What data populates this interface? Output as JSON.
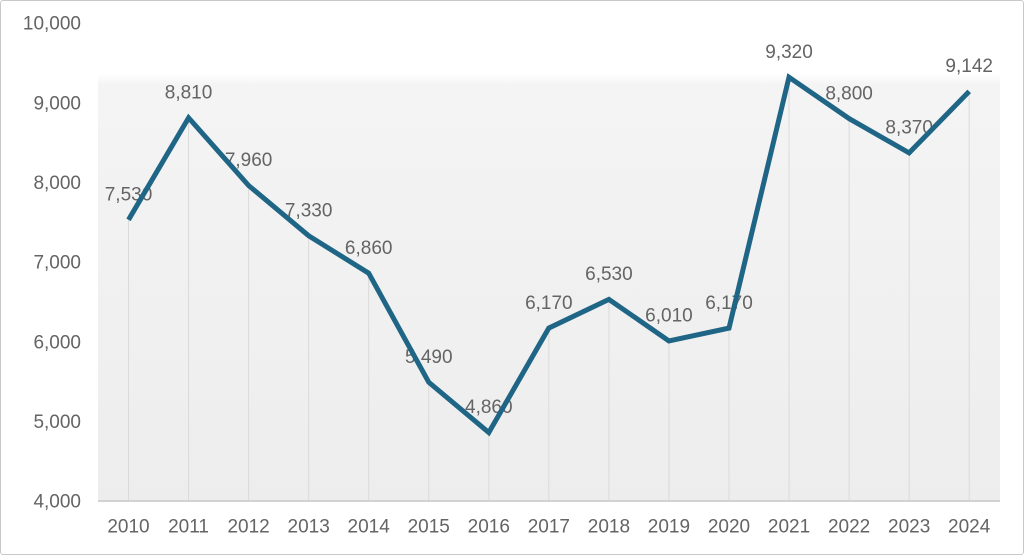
{
  "frame": {
    "background": "#ffffff",
    "border_color": "#c9c9c9"
  },
  "chart_data": {
    "type": "line",
    "title": "",
    "xlabel": "",
    "ylabel": "",
    "categories": [
      "2010",
      "2011",
      "2012",
      "2013",
      "2014",
      "2015",
      "2016",
      "2017",
      "2018",
      "2019",
      "2020",
      "2021",
      "2022",
      "2023",
      "2024"
    ],
    "series": [
      {
        "name": "annual-value",
        "values": [
          7530,
          8810,
          7960,
          7330,
          6860,
          5490,
          4860,
          6170,
          6530,
          6010,
          6170,
          9320,
          8800,
          8370,
          9142
        ],
        "point_labels": [
          "7,530",
          "8,810",
          "7,960",
          "7,330",
          "6,860",
          "5,490",
          "4,860",
          "6,170",
          "6,530",
          "6,010",
          "6,170",
          "9,320",
          "8,800",
          "8,370",
          "9,142"
        ]
      }
    ],
    "y_ticks": [
      {
        "value": 10000,
        "label": "10,000"
      },
      {
        "value": 9000,
        "label": "9,000"
      },
      {
        "value": 8000,
        "label": "8,000"
      },
      {
        "value": 7000,
        "label": "7,000"
      },
      {
        "value": 6000,
        "label": "6,000"
      },
      {
        "value": 5000,
        "label": "5,000"
      },
      {
        "value": 4000,
        "label": "4,000"
      }
    ],
    "ylim": [
      4000,
      10000
    ],
    "legend": "none",
    "grid": "vertical drop lines from each data point to the x-axis",
    "line_color": "#1f6586",
    "label_color": "#646464",
    "axis_text_color": "#646464",
    "drop_line_color": "#dadada",
    "axis_line_color": "#d2d2d2",
    "plot_bg_top": "#ffffff",
    "plot_bg_mid": "#f4f4f4",
    "plot_bg_bottom": "#ededed"
  }
}
